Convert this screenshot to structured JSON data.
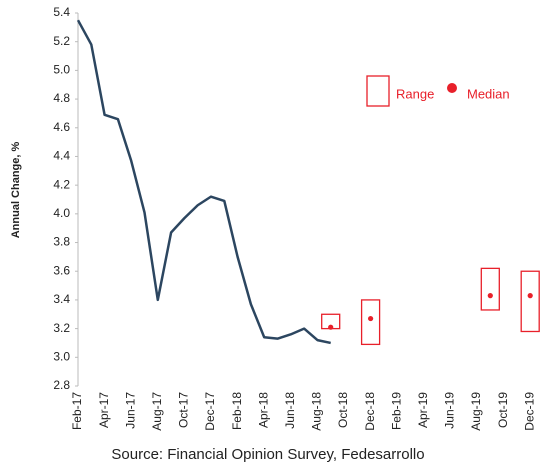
{
  "chart_data": {
    "type": "line",
    "ylabel": "Annual Change, %",
    "source": "Source: Financial Opinion Survey, Fedesarrollo",
    "categories": [
      "Feb-17",
      null,
      "Apr-17",
      null,
      "Jun-17",
      null,
      "Aug-17",
      null,
      "Oct-17",
      null,
      "Dec-17",
      null,
      "Feb-18",
      null,
      "Apr-18",
      null,
      "Jun-18",
      null,
      "Aug-18",
      null,
      "Oct-18",
      null,
      "Dec-18",
      null,
      "Feb-19",
      null,
      "Apr-19",
      null,
      "Jun-19",
      null,
      "Aug-19",
      null,
      "Oct-19",
      null,
      "Dec-19"
    ],
    "series": [
      {
        "color": "#2c4660",
        "values": [
          5.35,
          5.18,
          4.69,
          4.66,
          4.37,
          4.01,
          3.4,
          3.87,
          3.97,
          4.06,
          4.12,
          4.09,
          3.7,
          3.37,
          3.14,
          3.13,
          3.16,
          3.2,
          3.12,
          3.1,
          null,
          null,
          null,
          null,
          null,
          null,
          null,
          null,
          null,
          null,
          null,
          null,
          null,
          null,
          null
        ]
      },
      {
        "name": "Range",
        "color": "#e8202a",
        "low": [
          null,
          null,
          null,
          null,
          null,
          null,
          null,
          null,
          null,
          null,
          null,
          null,
          null,
          null,
          null,
          null,
          null,
          null,
          null,
          3.2,
          null,
          null,
          3.09,
          null,
          null,
          null,
          null,
          null,
          null,
          null,
          null,
          3.33,
          null,
          null,
          3.18
        ],
        "high": [
          null,
          null,
          null,
          null,
          null,
          null,
          null,
          null,
          null,
          null,
          null,
          null,
          null,
          null,
          null,
          null,
          null,
          null,
          null,
          3.3,
          null,
          null,
          3.4,
          null,
          null,
          null,
          null,
          null,
          null,
          null,
          null,
          3.62,
          null,
          null,
          3.6
        ]
      },
      {
        "name": "Median",
        "color": "#e8202a",
        "values": [
          null,
          null,
          null,
          null,
          null,
          null,
          null,
          null,
          null,
          null,
          null,
          null,
          null,
          null,
          null,
          null,
          null,
          null,
          null,
          3.21,
          null,
          null,
          3.27,
          null,
          null,
          null,
          null,
          null,
          null,
          null,
          null,
          3.43,
          null,
          null,
          3.43
        ]
      }
    ],
    "ylim": [
      2.8,
      5.4
    ],
    "yticks": [
      2.8,
      {
        "value": 3,
        "label": "3.0"
      },
      3.2,
      3.4,
      3.6,
      3.8,
      {
        "value": 4,
        "label": "4.0"
      },
      4.2,
      4.4,
      4.6,
      4.8,
      {
        "value": 5,
        "label": "5.0"
      },
      5.2,
      5.4
    ],
    "grid": false
  }
}
